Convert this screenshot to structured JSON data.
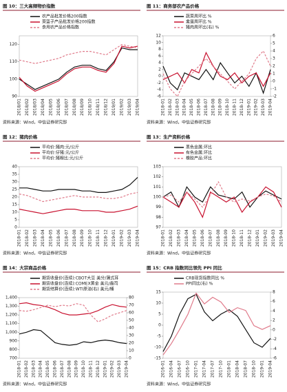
{
  "chart_data": [
    {
      "type": "line",
      "title": "图 10：三大高频物价指数",
      "source": "资料来源：Wind，中信证券研究部",
      "categories": [
        "2018/01",
        "2018/02",
        "2018/03",
        "2018/04",
        "2018/05",
        "2018/06",
        "2018/07",
        "2018/08",
        "2018/09",
        "2018/10",
        "2018/11",
        "2018/12",
        "2019/01",
        "2019/02",
        "2019/03",
        "2019/04"
      ],
      "series": [
        {
          "name": "农产品批发价格200指数",
          "color": "#111111",
          "values": [
            100,
            97,
            94,
            96,
            98,
            100,
            104,
            107,
            108,
            108,
            106,
            105,
            110,
            118,
            117,
            117
          ]
        },
        {
          "name": "菜篮子产品批发价格200指数",
          "color": "#c8102e",
          "values": [
            101,
            96,
            93,
            95,
            97,
            99,
            103,
            106,
            107,
            107,
            105,
            104,
            109,
            119,
            118,
            119
          ]
        },
        {
          "name": "食用农产品价格指数",
          "color": "#e07a8a",
          "dashed": true,
          "values": [
            111,
            110,
            109,
            110,
            111,
            112,
            114,
            115,
            116,
            116,
            115,
            114,
            117,
            120,
            119,
            118
          ]
        }
      ],
      "ylim": [
        90,
        125
      ],
      "yticks": [
        90,
        100,
        110,
        120
      ]
    },
    {
      "type": "line",
      "title": "图 11：商务部农产品价格",
      "source": "资料来源：Wind，中信证券研究部",
      "categories": [
        "2018-01",
        "2018-02",
        "2018-03",
        "2018-04",
        "2018-05",
        "2018-06",
        "2018-07",
        "2018-08",
        "2018-09",
        "2018-10",
        "2018-11",
        "2018-12",
        "2019-01",
        "2019-02",
        "2019-03",
        "2019-04"
      ],
      "series": [
        {
          "name": "蔬菜周环比 %",
          "color": "#111111",
          "values": [
            3,
            -2,
            -4,
            1,
            0,
            -1,
            2,
            -1,
            4,
            1,
            -2,
            0,
            -3,
            1,
            -5,
            2
          ]
        },
        {
          "name": "禽蛋周环比 %",
          "color": "#c8102e",
          "values": [
            -1,
            0,
            1,
            -2,
            2,
            1,
            7,
            3,
            0,
            -1,
            1,
            -2,
            0,
            1,
            -3,
            1
          ]
        },
        {
          "name": "猪肉周环比(右) %",
          "color": "#e07a8a",
          "dashed": true,
          "axis": "y2",
          "values": [
            1,
            -1,
            -2,
            0,
            1,
            2,
            3,
            2,
            1,
            0,
            -1,
            0,
            1,
            3,
            4,
            2
          ]
        }
      ],
      "ylim": [
        -6,
        12
      ],
      "yticks": [
        -6,
        -4,
        -2,
        0,
        2,
        4,
        6,
        8,
        10,
        12
      ],
      "y2lim": [
        -2,
        6
      ],
      "y2ticks": [
        -2,
        -1,
        0,
        1,
        2,
        3,
        4,
        5,
        6
      ]
    },
    {
      "type": "line",
      "title": "图 12：猪肉价格",
      "source": "资料来源：Wind，中信证券研究部",
      "categories": [
        "2018-01",
        "2018-02",
        "2018-03",
        "2018-04",
        "2018-05",
        "2018-06",
        "2018-07",
        "2018-08",
        "2018-09",
        "2018-10",
        "2018-11",
        "2018-12",
        "2019-01",
        "2019-02",
        "2019-03",
        "2019-04"
      ],
      "series": [
        {
          "name": "平均价:猪肉:元/公斤",
          "color": "#111111",
          "values": [
            26,
            26,
            25,
            24,
            24,
            25,
            25,
            25,
            24,
            24,
            23,
            23,
            24,
            25,
            28,
            33
          ]
        },
        {
          "name": "平均价:仔猪:元/公斤",
          "color": "#c8102e",
          "values": [
            12,
            11,
            10,
            9,
            10,
            11,
            12,
            12,
            11,
            11,
            11,
            10,
            10,
            11,
            12,
            14
          ]
        },
        {
          "name": "平均价:猪粮比:元/公斤",
          "color": "#e07a8a",
          "dashed": true,
          "values": [
            22,
            21,
            19,
            17,
            18,
            19,
            20,
            21,
            20,
            20,
            20,
            19,
            19,
            20,
            22,
            23
          ]
        }
      ],
      "ylim": [
        0,
        40
      ],
      "yticks": [
        0,
        5,
        10,
        15,
        20,
        25,
        30,
        35,
        40
      ]
    },
    {
      "type": "line",
      "title": "图 13：生产资料价格",
      "source": "资料来源：Wind，中信证券研究部",
      "categories": [
        "2018-01",
        "2018-02",
        "2018-03",
        "2018-04",
        "2018-05",
        "2018-06",
        "2018-07",
        "2018-08",
        "2018-09",
        "2018-10",
        "2018-11",
        "2018-12",
        "2019-01",
        "2019-02",
        "2019-03",
        "2019-04"
      ],
      "series": [
        {
          "name": "黑色金属:环比",
          "color": "#111111",
          "values": [
            100,
            100.5,
            99,
            101,
            100,
            99.5,
            101,
            100.2,
            100,
            99.8,
            100.5,
            99,
            100,
            100.6,
            100.2,
            99.8
          ]
        },
        {
          "name": "有色金属:环比",
          "color": "#c8102e",
          "values": [
            100,
            99.5,
            99,
            100.5,
            99.5,
            98,
            100.5,
            100,
            99.5,
            100,
            98.5,
            99.5,
            100,
            101,
            100.5,
            99
          ]
        },
        {
          "name": "橡胶产品:环比",
          "color": "#e07a8a",
          "dashed": true,
          "values": [
            100,
            100.2,
            99.5,
            100.5,
            99.8,
            99,
            100.2,
            101.5,
            100,
            99.5,
            99.8,
            99.6,
            100,
            100.3,
            100.1,
            99.5
          ]
        }
      ],
      "ylim": [
        97,
        103
      ],
      "yticks": [
        97,
        98,
        99,
        100,
        101,
        102,
        103
      ]
    },
    {
      "type": "line",
      "title": "图 14：大宗商品价格",
      "source": "资料来源：Wind，中信证券研究部",
      "categories": [
        "2018-01",
        "2018-02",
        "2018-03",
        "2018-04",
        "2018-05",
        "2018-06",
        "2018-07",
        "2018-08",
        "2018-09",
        "2018-10",
        "2018-11",
        "2018-12",
        "2019-01",
        "2019-02",
        "2019-03",
        "2019-04"
      ],
      "series": [
        {
          "name": "期货收盘价(连续):CBOT大豆 美分/蒲式耳",
          "color": "#111111",
          "values": [
            980,
            1000,
            1030,
            1020,
            950,
            880,
            860,
            850,
            860,
            890,
            880,
            900,
            910,
            900,
            880,
            870
          ]
        },
        {
          "name": "期货收盘价(连续):COMEX黄金 美元/盎司",
          "color": "#c8102e",
          "values": [
            1330,
            1340,
            1320,
            1310,
            1290,
            1260,
            1220,
            1200,
            1200,
            1210,
            1220,
            1250,
            1290,
            1320,
            1300,
            1290
          ]
        },
        {
          "name": "期货结算价(连续):WTI原油(右) 美元/桶",
          "color": "#e07a8a",
          "dashed": true,
          "axis": "y2",
          "values": [
            63,
            62,
            64,
            67,
            70,
            68,
            70,
            69,
            72,
            70,
            57,
            48,
            52,
            57,
            60,
            63
          ]
        }
      ],
      "ylim": [
        700,
        1400
      ],
      "yticks": [
        700,
        800,
        900,
        {
          "value": 1000,
          "label": "1,000"
        },
        {
          "value": 1100,
          "label": "1,100"
        },
        {
          "value": 1200,
          "label": "1,200"
        },
        {
          "value": 1300,
          "label": "1,300"
        },
        {
          "value": 1400,
          "label": "1,400"
        }
      ],
      "y2lim": [
        0,
        80
      ],
      "y2ticks": [
        0,
        10,
        20,
        30,
        40,
        50,
        60,
        70,
        80
      ]
    },
    {
      "type": "line",
      "title": "图 15：CRB 指数同比领先 PPI 同比",
      "source": "资料来源：Wind，中信证券研究部",
      "categories": [
        "2016-01",
        "2016-04",
        "2016-07",
        "2016-10",
        "2017-01",
        "2017-04",
        "2017-07",
        "2017-10",
        "2018-01",
        "2018-04",
        "2018-07",
        "2018-10",
        "2019-01",
        "2019-04"
      ],
      "series": [
        {
          "name": "CRB现货指数同比 %",
          "color": "#111111",
          "values": [
            -12,
            -5,
            5,
            12,
            14,
            6,
            2,
            5,
            7,
            4,
            -2,
            -8,
            -10,
            -6
          ]
        },
        {
          "name": "PPI同比(右) %",
          "color": "#e07a8a",
          "axis": "y2",
          "values": [
            -5.3,
            -2.9,
            0.1,
            3.3,
            7.8,
            5.5,
            6.9,
            5.9,
            3.7,
            4.7,
            4.1,
            0.9,
            0.1,
            0.9
          ]
        }
      ],
      "ylim": [
        -15,
        15
      ],
      "yticks": [
        -15,
        -10,
        -5,
        0,
        5,
        10,
        15
      ],
      "y2lim": [
        -6,
        8
      ],
      "y2ticks": [
        -6,
        -4,
        -2,
        0,
        2,
        4,
        6,
        8
      ]
    }
  ]
}
